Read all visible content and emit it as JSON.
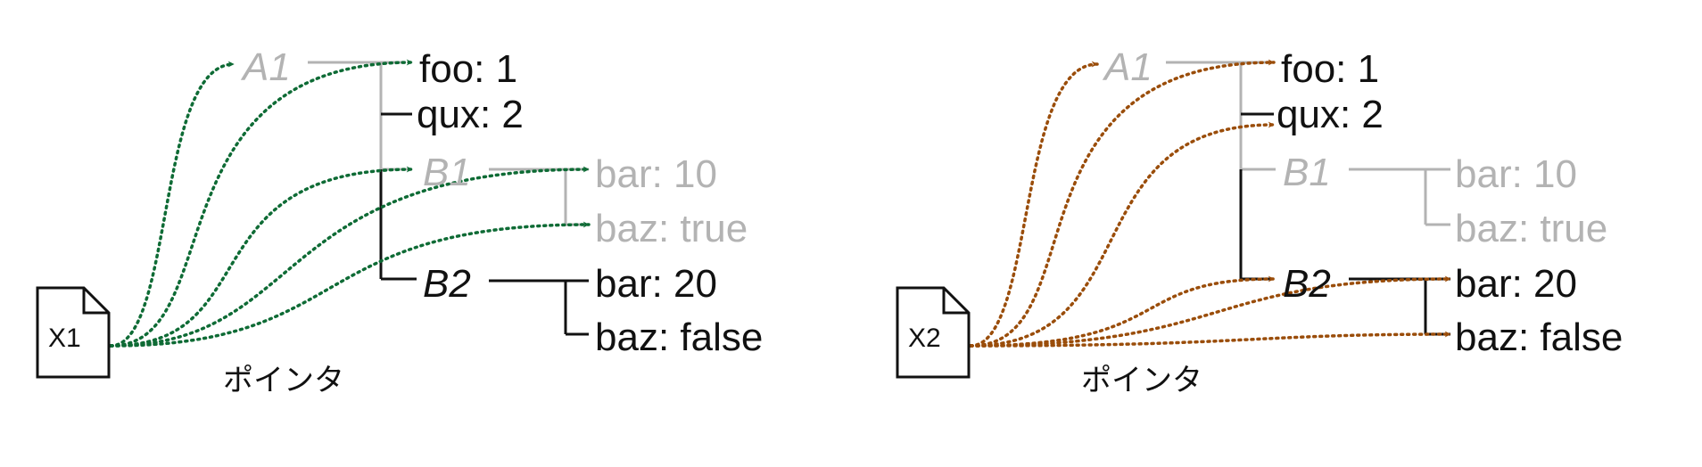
{
  "colors": {
    "active": "#111111",
    "inactive": "#b3b3b3",
    "pointer_left": "#0e6b35",
    "pointer_right": "#9a4d0a"
  },
  "left": {
    "file": "X1",
    "caption": "ポインタ",
    "nodes": {
      "a1": "A1",
      "foo": "foo: 1",
      "qux": "qux: 2",
      "b1": "B1",
      "b1_bar": "bar: 10",
      "b1_baz": "baz: true",
      "b2": "B2",
      "b2_bar": "bar: 20",
      "b2_baz": "baz: false"
    }
  },
  "right": {
    "file": "X2",
    "caption": "ポインタ",
    "nodes": {
      "a1": "A1",
      "foo": "foo: 1",
      "qux": "qux: 2",
      "b1": "B1",
      "b1_bar": "bar: 10",
      "b1_baz": "baz: true",
      "b2": "B2",
      "b2_bar": "bar: 20",
      "b2_baz": "baz: false"
    }
  }
}
